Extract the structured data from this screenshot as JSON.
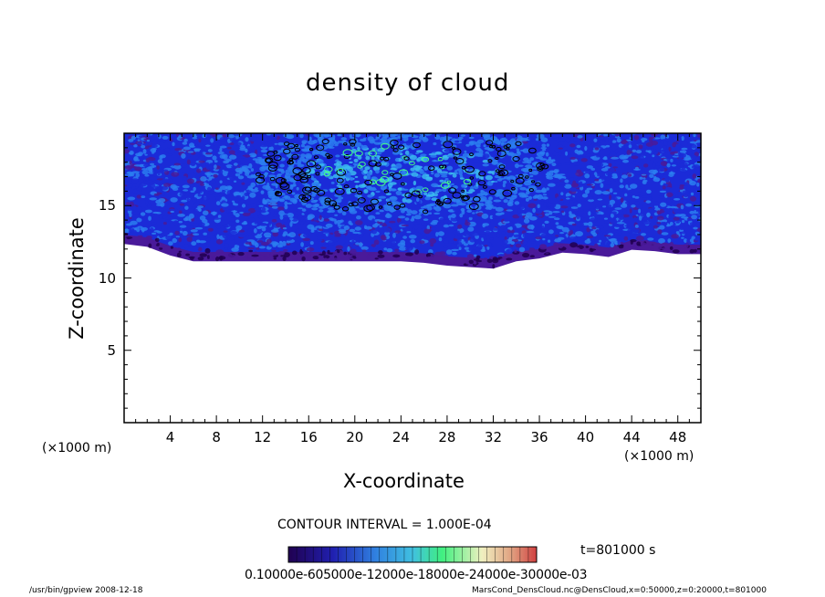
{
  "chart_data": {
    "type": "heatmap",
    "title": "density of cloud",
    "xlabel": "X-coordinate",
    "ylabel": "Z-coordinate",
    "x_unit": "(×1000 m)",
    "y_unit": "(×1000 m)",
    "xlim": [
      0,
      50
    ],
    "ylim": [
      0,
      20
    ],
    "xticks": [
      4,
      8,
      12,
      16,
      20,
      24,
      28,
      32,
      36,
      40,
      44,
      48
    ],
    "yticks": [
      5,
      10,
      15
    ],
    "contour_interval": "CONTOUR INTERVAL = 1.000E-04",
    "time": "t=801000 s",
    "colorbar_labels": "0.10000e-605000e-12000e-18000e-24000e-30000e-03",
    "colors": [
      "#200050",
      "#4a1a9a",
      "#1b2bd8",
      "#2a7cf0",
      "#3ab8f0",
      "#44ff88",
      "#f0f0b0",
      "#d05050"
    ],
    "cloud_band": {
      "x": [
        0,
        2,
        4,
        6,
        8,
        10,
        12,
        14,
        16,
        18,
        20,
        22,
        24,
        26,
        28,
        30,
        32,
        34,
        36,
        38,
        40,
        42,
        44,
        46,
        48,
        50
      ],
      "z_bottom": [
        12.5,
        12.3,
        11.7,
        11.3,
        11.3,
        11.3,
        11.3,
        11.3,
        11.3,
        11.3,
        11.3,
        11.3,
        11.3,
        11.2,
        11.0,
        10.9,
        10.8,
        11.3,
        11.5,
        11.9,
        11.8,
        11.6,
        12.1,
        12.0,
        11.8,
        11.8
      ],
      "z_top": 20
    }
  },
  "footer": {
    "left": "/usr/bin/gpview   2008-12-18",
    "right": "MarsCond_DensCloud.nc@DensCloud,x=0:50000,z=0:20000,t=801000"
  }
}
